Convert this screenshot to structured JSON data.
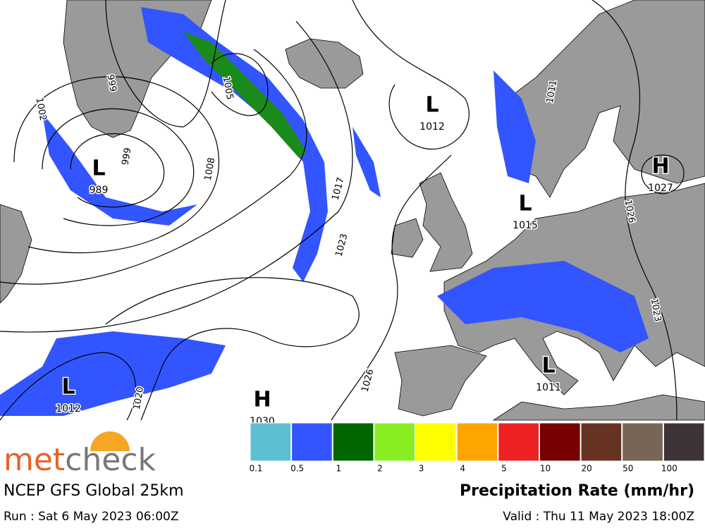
{
  "map": {
    "pressure_centers": [
      {
        "symbol": "L",
        "value": "1012"
      },
      {
        "symbol": "L",
        "value": "989"
      },
      {
        "symbol": "H",
        "value": "1027"
      },
      {
        "symbol": "L",
        "value": "1015"
      },
      {
        "symbol": "L",
        "value": "1011"
      },
      {
        "symbol": "L",
        "value": "1012"
      },
      {
        "symbol": "H",
        "value": "1030"
      }
    ],
    "isobar_labels": [
      "999",
      "1002",
      "1005",
      "1008",
      "1017",
      "1023",
      "1026",
      "1020",
      "1023",
      "1026",
      "1011",
      "999"
    ]
  },
  "legend": {
    "title": "Precipitation Rate (mm/hr)",
    "labels": [
      "0.1",
      "0.5",
      "1",
      "2",
      "3",
      "4",
      "5",
      "10",
      "20",
      "50",
      "100"
    ],
    "colors": [
      "#5bc0d0",
      "#3355ff",
      "#006600",
      "#88ee22",
      "#ffff00",
      "#ffa500",
      "#ee2222",
      "#770000",
      "#663322",
      "#776655",
      "#3d3338"
    ]
  },
  "footer": {
    "brand": [
      "met",
      "check"
    ],
    "model": "NCEP GFS Global 25km",
    "run": "Run : Sat 6 May 2023 06:00Z",
    "valid": "Valid : Thu 11 May 2023 18:00Z"
  }
}
